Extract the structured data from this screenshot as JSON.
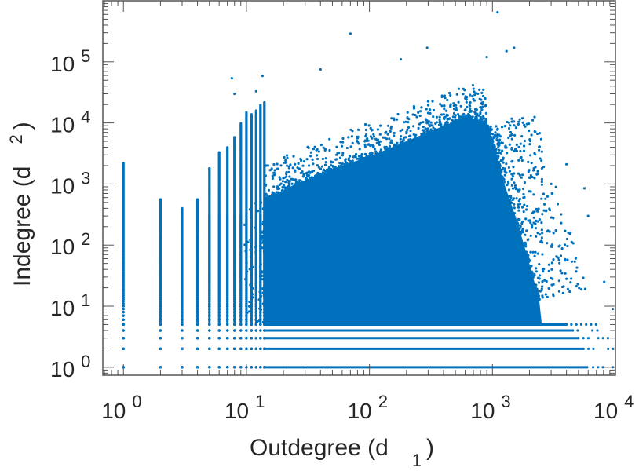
{
  "chart_data": {
    "type": "scatter",
    "title": "",
    "xlabel": {
      "main": "Outdegree (d",
      "sub": "1",
      "close": ")"
    },
    "ylabel": {
      "main": "Indegree (d",
      "sub": "2",
      "close": ")"
    },
    "xscale": "log",
    "yscale": "log",
    "xlim": [
      0.68,
      10000
    ],
    "ylim": [
      0.74,
      1000000
    ],
    "xticks": [
      {
        "value": 1,
        "base": "10",
        "exp": "0"
      },
      {
        "value": 10,
        "base": "10",
        "exp": "1"
      },
      {
        "value": 100,
        "base": "10",
        "exp": "2"
      },
      {
        "value": 1000,
        "base": "10",
        "exp": "3"
      },
      {
        "value": 10000,
        "base": "10",
        "exp": "4"
      }
    ],
    "yticks": [
      {
        "value": 1,
        "base": "10",
        "exp": "0"
      },
      {
        "value": 10,
        "base": "10",
        "exp": "1"
      },
      {
        "value": 100,
        "base": "10",
        "exp": "2"
      },
      {
        "value": 1000,
        "base": "10",
        "exp": "3"
      },
      {
        "value": 10000,
        "base": "10",
        "exp": "4"
      },
      {
        "value": 100000,
        "base": "10",
        "exp": "5"
      }
    ],
    "grid": false,
    "marker_color": "#0072BD",
    "dense_region_log10": [
      [
        1.15,
        0.72
      ],
      [
        1.15,
        2.75
      ],
      [
        1.4,
        3.0
      ],
      [
        1.7,
        3.25
      ],
      [
        2.0,
        3.45
      ],
      [
        2.3,
        3.7
      ],
      [
        2.6,
        3.95
      ],
      [
        2.8,
        4.1
      ],
      [
        2.95,
        4.0
      ],
      [
        3.02,
        3.6
      ],
      [
        3.08,
        3.1
      ],
      [
        3.2,
        2.4
      ],
      [
        3.3,
        1.7
      ],
      [
        3.38,
        1.1
      ],
      [
        3.4,
        0.72
      ]
    ],
    "integer_columns": {
      "x_values": [
        1,
        2,
        3,
        4,
        5,
        6,
        7,
        8,
        9,
        10,
        11,
        12,
        13,
        14
      ],
      "ymax": [
        2200,
        560,
        400,
        560,
        1800,
        3300,
        4000,
        6000,
        10000,
        15000,
        14000,
        16000,
        20000,
        22000
      ]
    },
    "integer_rows": {
      "y_values": [
        1,
        2,
        3,
        4,
        5
      ],
      "xmax": [
        6000,
        5500,
        5000,
        4500,
        4000
      ]
    },
    "outliers": [
      [
        70,
        290000
      ],
      [
        1100,
        650000
      ],
      [
        7.6,
        54000
      ],
      [
        13.5,
        59000
      ],
      [
        12,
        33000
      ],
      [
        295,
        170000
      ],
      [
        1500,
        170000
      ],
      [
        1300,
        150000
      ],
      [
        5600,
        850
      ],
      [
        8100,
        25
      ],
      [
        9500,
        9
      ],
      [
        1,
        2200
      ],
      [
        40,
        75000
      ],
      [
        4000,
        2100
      ],
      [
        3000,
        1000
      ],
      [
        6000,
        300
      ],
      [
        2,
        560
      ],
      [
        3,
        400
      ],
      [
        4,
        560
      ],
      [
        5,
        1800
      ],
      [
        6,
        3300
      ],
      [
        8,
        30000
      ],
      [
        180,
        110000
      ],
      [
        900,
        120000
      ]
    ]
  }
}
